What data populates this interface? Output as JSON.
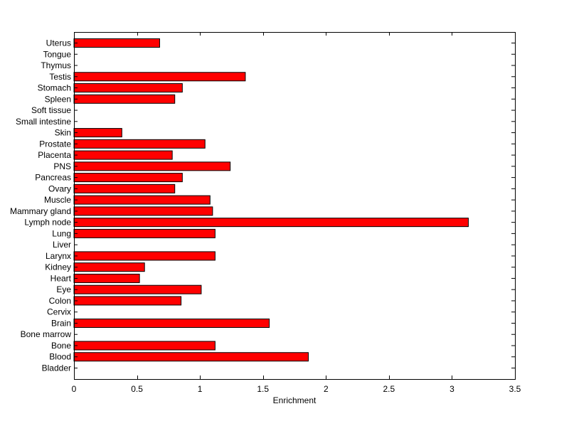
{
  "chart_data": {
    "type": "bar",
    "orientation": "horizontal",
    "xlabel": "Enrichment",
    "ylabel": "",
    "xlim": [
      0,
      3.5
    ],
    "xticks": [
      "0",
      "0.5",
      "1",
      "1.5",
      "2",
      "2.5",
      "3",
      "3.5"
    ],
    "grid": false,
    "bar_color": "#ff0000",
    "categories": [
      "Bladder",
      "Blood",
      "Bone",
      "Bone marrow",
      "Brain",
      "Cervix",
      "Colon",
      "Eye",
      "Heart",
      "Kidney",
      "Larynx",
      "Liver",
      "Lung",
      "Lymph node",
      "Mammary gland",
      "Muscle",
      "Ovary",
      "Pancreas",
      "PNS",
      "Placenta",
      "Prostate",
      "Skin",
      "Small intestine",
      "Soft tissue",
      "Spleen",
      "Stomach",
      "Testis",
      "Thymus",
      "Tongue",
      "Uterus"
    ],
    "values": [
      0,
      1.86,
      1.12,
      0,
      1.55,
      0,
      0.85,
      1.01,
      0.52,
      0.56,
      1.12,
      0,
      1.12,
      3.13,
      1.1,
      1.08,
      0.8,
      0.86,
      1.24,
      0.78,
      1.04,
      0.38,
      0,
      0,
      0.8,
      0.86,
      1.36,
      0,
      0,
      0.68
    ]
  }
}
